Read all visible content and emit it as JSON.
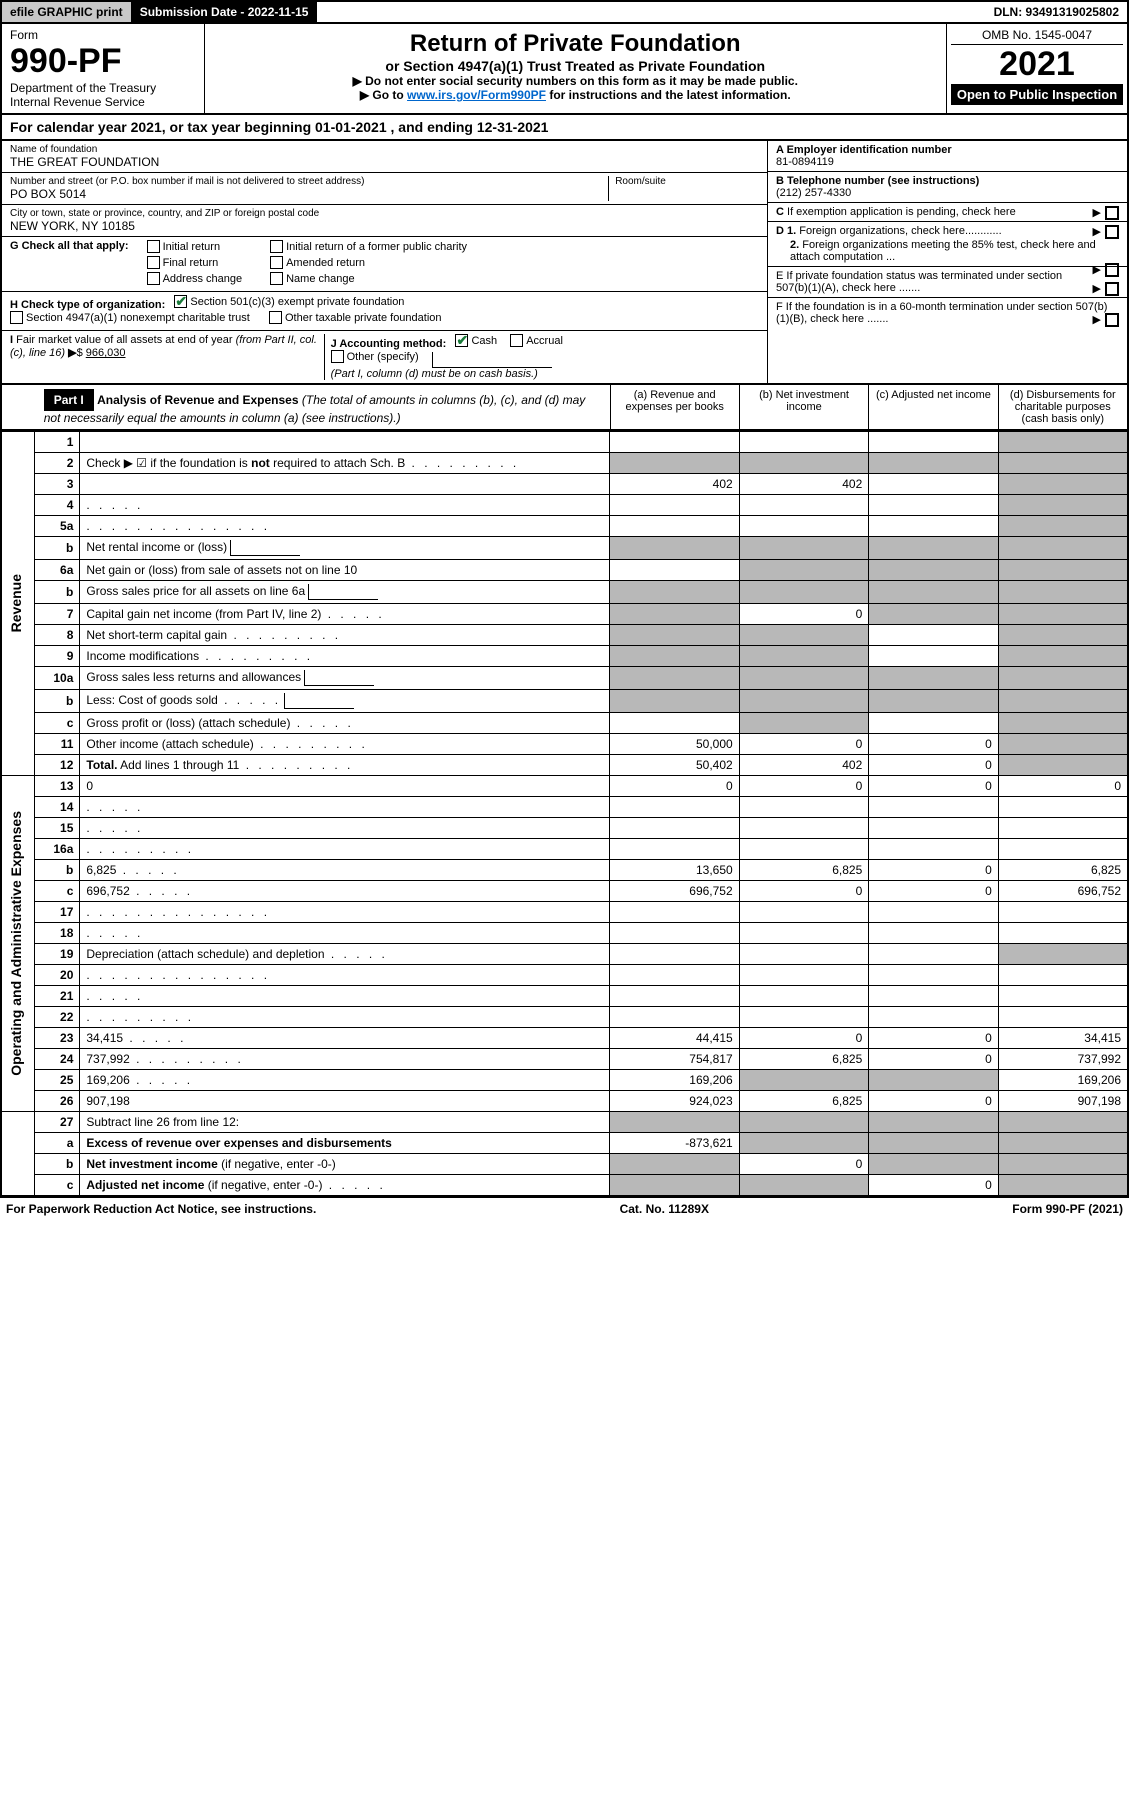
{
  "topbar": {
    "efile": "efile GRAPHIC print",
    "subdate_label": "Submission Date - 2022-11-15",
    "dln": "DLN: 93491319025802"
  },
  "header": {
    "form_label": "Form",
    "form_no": "990-PF",
    "dept1": "Department of the Treasury",
    "dept2": "Internal Revenue Service",
    "title": "Return of Private Foundation",
    "subtitle": "or Section 4947(a)(1) Trust Treated as Private Foundation",
    "note1": "▶ Do not enter social security numbers on this form as it may be made public.",
    "note2_pre": "▶ Go to ",
    "note2_link": "www.irs.gov/Form990PF",
    "note2_post": " for instructions and the latest information.",
    "omb": "OMB No. 1545-0047",
    "year": "2021",
    "inspection": "Open to Public Inspection"
  },
  "calyear": "For calendar year 2021, or tax year beginning 01-01-2021          , and ending 12-31-2021",
  "info": {
    "name_label": "Name of foundation",
    "name": "THE GREAT FOUNDATION",
    "addr_label": "Number and street (or P.O. box number if mail is not delivered to street address)",
    "addr": "PO BOX 5014",
    "room_label": "Room/suite",
    "city_label": "City or town, state or province, country, and ZIP or foreign postal code",
    "city": "NEW YORK, NY  10185",
    "a_label": "A Employer identification number",
    "a_val": "81-0894119",
    "b_label": "B Telephone number (see instructions)",
    "b_val": "(212) 257-4330",
    "c_label": "C If exemption application is pending, check here",
    "d1": "D 1. Foreign organizations, check here............",
    "d2": "2. Foreign organizations meeting the 85% test, check here and attach computation ...",
    "e_label": "E  If private foundation status was terminated under section 507(b)(1)(A), check here .......",
    "f_label": "F  If the foundation is in a 60-month termination under section 507(b)(1)(B), check here .......",
    "g_label": "G Check all that apply:",
    "g_opts": [
      "Initial return",
      "Final return",
      "Address change",
      "Initial return of a former public charity",
      "Amended return",
      "Name change"
    ],
    "h_label": "H Check type of organization:",
    "h_opts": [
      "Section 501(c)(3) exempt private foundation",
      "Section 4947(a)(1) nonexempt charitable trust",
      "Other taxable private foundation"
    ],
    "i_label": "I Fair market value of all assets at end of year (from Part II, col. (c), line 16)",
    "i_val": "966,030",
    "j_label": "J Accounting method:",
    "j_opts": [
      "Cash",
      "Accrual",
      "Other (specify)"
    ],
    "j_note": "(Part I, column (d) must be on cash basis.)"
  },
  "part1": {
    "label": "Part I",
    "title": "Analysis of Revenue and Expenses",
    "title_note": " (The total of amounts in columns (b), (c), and (d) may not necessarily equal the amounts in column (a) (see instructions).)",
    "cols": {
      "a": "(a)   Revenue and expenses per books",
      "b": "(b)   Net investment income",
      "c": "(c)   Adjusted net income",
      "d": "(d)   Disbursements for charitable purposes (cash basis only)"
    }
  },
  "sides": {
    "rev": "Revenue",
    "exp": "Operating and Administrative Expenses"
  },
  "rows": [
    {
      "n": "1",
      "d": "",
      "a": "",
      "b": "",
      "c": "",
      "dShade": true
    },
    {
      "n": "2",
      "d": "Check ▶ ☑ if the foundation is <b>not</b> required to attach Sch. B",
      "dots": "m",
      "noVal": true
    },
    {
      "n": "3",
      "d": "",
      "a": "402",
      "b": "402",
      "c": "",
      "dShade": true
    },
    {
      "n": "4",
      "d": "",
      "dots": "s",
      "a": "",
      "b": "",
      "c": "",
      "dShade": true
    },
    {
      "n": "5a",
      "d": "",
      "dots": "l",
      "a": "",
      "b": "",
      "c": "",
      "dShade": true
    },
    {
      "n": "b",
      "d": "Net rental income or (loss)",
      "inline": true,
      "allShade": true
    },
    {
      "n": "6a",
      "d": "Net gain or (loss) from sale of assets not on line 10",
      "a": "",
      "bShade": true,
      "cShade": true,
      "dShade": true
    },
    {
      "n": "b",
      "d": "Gross sales price for all assets on line 6a",
      "inline": true,
      "allShade": true
    },
    {
      "n": "7",
      "d": "Capital gain net income (from Part IV, line 2)",
      "dots": "s",
      "aShade": true,
      "b": "0",
      "cShade": true,
      "dShade": true
    },
    {
      "n": "8",
      "d": "Net short-term capital gain",
      "dots": "m",
      "aShade": true,
      "bShade": true,
      "c": "",
      "dShade": true
    },
    {
      "n": "9",
      "d": "Income modifications",
      "dots": "m",
      "aShade": true,
      "bShade": true,
      "c": "",
      "dShade": true
    },
    {
      "n": "10a",
      "d": "Gross sales less returns and allowances",
      "inline": true,
      "allShade": true
    },
    {
      "n": "b",
      "d": "Less: Cost of goods sold",
      "dots": "s",
      "inline": true,
      "allShade": true
    },
    {
      "n": "c",
      "d": "Gross profit or (loss) (attach schedule)",
      "dots": "s",
      "a": "",
      "bShade": true,
      "c": "",
      "dShade": true
    },
    {
      "n": "11",
      "d": "Other income (attach schedule)",
      "dots": "m",
      "a": "50,000",
      "b": "0",
      "c": "0",
      "dShade": true
    },
    {
      "n": "12",
      "d": "<b>Total.</b> Add lines 1 through 11",
      "dots": "m",
      "a": "50,402",
      "b": "402",
      "c": "0",
      "dShade": true,
      "bold": true
    }
  ],
  "exprows": [
    {
      "n": "13",
      "d": "0",
      "a": "0",
      "b": "0",
      "c": "0"
    },
    {
      "n": "14",
      "d": "",
      "dots": "s",
      "a": "",
      "b": "",
      "c": ""
    },
    {
      "n": "15",
      "d": "",
      "dots": "s",
      "a": "",
      "b": "",
      "c": ""
    },
    {
      "n": "16a",
      "d": "",
      "dots": "m",
      "a": "",
      "b": "",
      "c": ""
    },
    {
      "n": "b",
      "d": "6,825",
      "dots": "s",
      "a": "13,650",
      "b": "6,825",
      "c": "0"
    },
    {
      "n": "c",
      "d": "696,752",
      "dots": "s",
      "a": "696,752",
      "b": "0",
      "c": "0"
    },
    {
      "n": "17",
      "d": "",
      "dots": "l",
      "a": "",
      "b": "",
      "c": ""
    },
    {
      "n": "18",
      "d": "",
      "dots": "s",
      "a": "",
      "b": "",
      "c": ""
    },
    {
      "n": "19",
      "d": "Depreciation (attach schedule) and depletion",
      "dots": "s",
      "a": "",
      "b": "",
      "c": "",
      "dShade": true
    },
    {
      "n": "20",
      "d": "",
      "dots": "l",
      "a": "",
      "b": "",
      "c": ""
    },
    {
      "n": "21",
      "d": "",
      "dots": "s",
      "a": "",
      "b": "",
      "c": ""
    },
    {
      "n": "22",
      "d": "",
      "dots": "m",
      "a": "",
      "b": "",
      "c": ""
    },
    {
      "n": "23",
      "d": "34,415",
      "dots": "s",
      "a": "44,415",
      "b": "0",
      "c": "0"
    },
    {
      "n": "24",
      "d": "737,992",
      "dots": "m",
      "a": "754,817",
      "b": "6,825",
      "c": "0"
    },
    {
      "n": "25",
      "d": "169,206",
      "dots": "s",
      "a": "169,206",
      "bShade": true,
      "cShade": true
    },
    {
      "n": "26",
      "d": "907,198",
      "a": "924,023",
      "b": "6,825",
      "c": "0"
    }
  ],
  "sumrows": [
    {
      "n": "27",
      "d": "Subtract line 26 from line 12:",
      "aShade": true,
      "bShade": true,
      "cShade": true,
      "dShade": true
    },
    {
      "n": "a",
      "d": "<b>Excess of revenue over expenses and disbursements</b>",
      "a": "-873,621",
      "bShade": true,
      "cShade": true,
      "dShade": true
    },
    {
      "n": "b",
      "d": "<b>Net investment income</b> (if negative, enter -0-)",
      "aShade": true,
      "b": "0",
      "cShade": true,
      "dShade": true
    },
    {
      "n": "c",
      "d": "<b>Adjusted net income</b> (if negative, enter -0-)",
      "dots": "s",
      "aShade": true,
      "bShade": true,
      "c": "0",
      "dShade": true
    }
  ],
  "footer": {
    "left": "For Paperwork Reduction Act Notice, see instructions.",
    "mid": "Cat. No. 11289X",
    "right": "Form 990-PF (2021)"
  },
  "colors": {
    "shade": "#b8b8b8",
    "link": "#0066cc",
    "check": "#1a7a3a"
  }
}
